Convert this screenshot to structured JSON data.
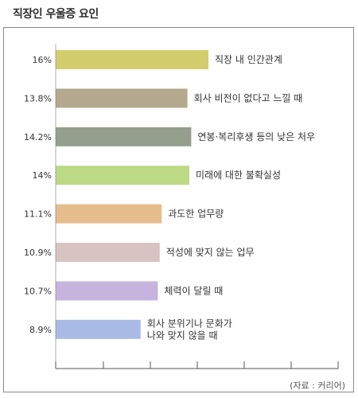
{
  "chart_data": {
    "type": "bar",
    "orientation": "horizontal",
    "title": "직장인 우울증 요인",
    "source": "(자료 : 커리어)",
    "categories": [
      [
        "직장 내 인간관계"
      ],
      [
        "회사 비전이 없다고 느낄 때"
      ],
      [
        "연봉·복리후생 등의 낮은 처우"
      ],
      [
        "미래에 대한 불확실성"
      ],
      [
        "과도한 업무량"
      ],
      [
        "적성에 맞지 않는 업무"
      ],
      [
        "체력이 달릴 때"
      ],
      [
        "회사 분위기나 문화가",
        "나와 맞지 않을 때"
      ]
    ],
    "values": [
      16,
      13.8,
      14.2,
      14,
      11.1,
      10.9,
      10.7,
      8.9
    ],
    "value_labels": [
      "16%",
      "13.8%",
      "14.2%",
      "14%",
      "11.1%",
      "10.9%",
      "10.7%",
      "8.9%"
    ],
    "bar_colors": [
      "#d4cd6e",
      "#b4a88e",
      "#949f8e",
      "#bcd985",
      "#e6bd8d",
      "#d7c4c2",
      "#c6b3de",
      "#a9bbe5"
    ],
    "xlim": [
      0,
      16
    ],
    "grid": false
  }
}
